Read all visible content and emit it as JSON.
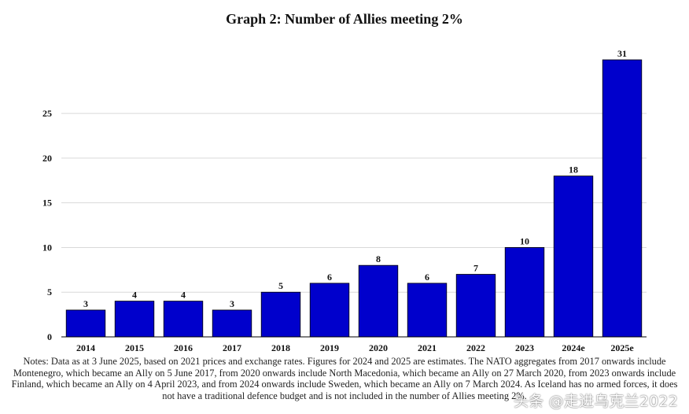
{
  "chart_data": {
    "type": "bar",
    "title": "Graph 2: Number of Allies meeting 2%",
    "xlabel": "",
    "ylabel": "",
    "categories": [
      "2014",
      "2015",
      "2016",
      "2017",
      "2018",
      "2019",
      "2020",
      "2021",
      "2022",
      "2023",
      "2024e",
      "2025e"
    ],
    "values": [
      3,
      4,
      4,
      3,
      5,
      6,
      8,
      6,
      7,
      10,
      18,
      31
    ],
    "ylim": [
      0,
      31
    ],
    "yticks": [
      0,
      5,
      10,
      15,
      20,
      25
    ],
    "grid": true,
    "legend": "none",
    "bar_color": "#0000CC"
  },
  "notes": "Notes: Data as at 3 June 2025, based on 2021 prices and exchange rates. Figures for 2024 and 2025 are estimates. The NATO aggregates from 2017 onwards include Montenegro, which became an Ally on 5 June 2017, from 2020 onwards include North Macedonia, which became an Ally on 27 March 2020, from 2023 onwards include Finland, which became an Ally on 4 April 2023, and from 2024 onwards include Sweden, which became an Ally on 7 March 2024. As Iceland has no armed forces, it does not have a traditional defence budget and is not included in the number of Allies meeting 2%.",
  "watermark": "头条 @走进乌克兰2022"
}
